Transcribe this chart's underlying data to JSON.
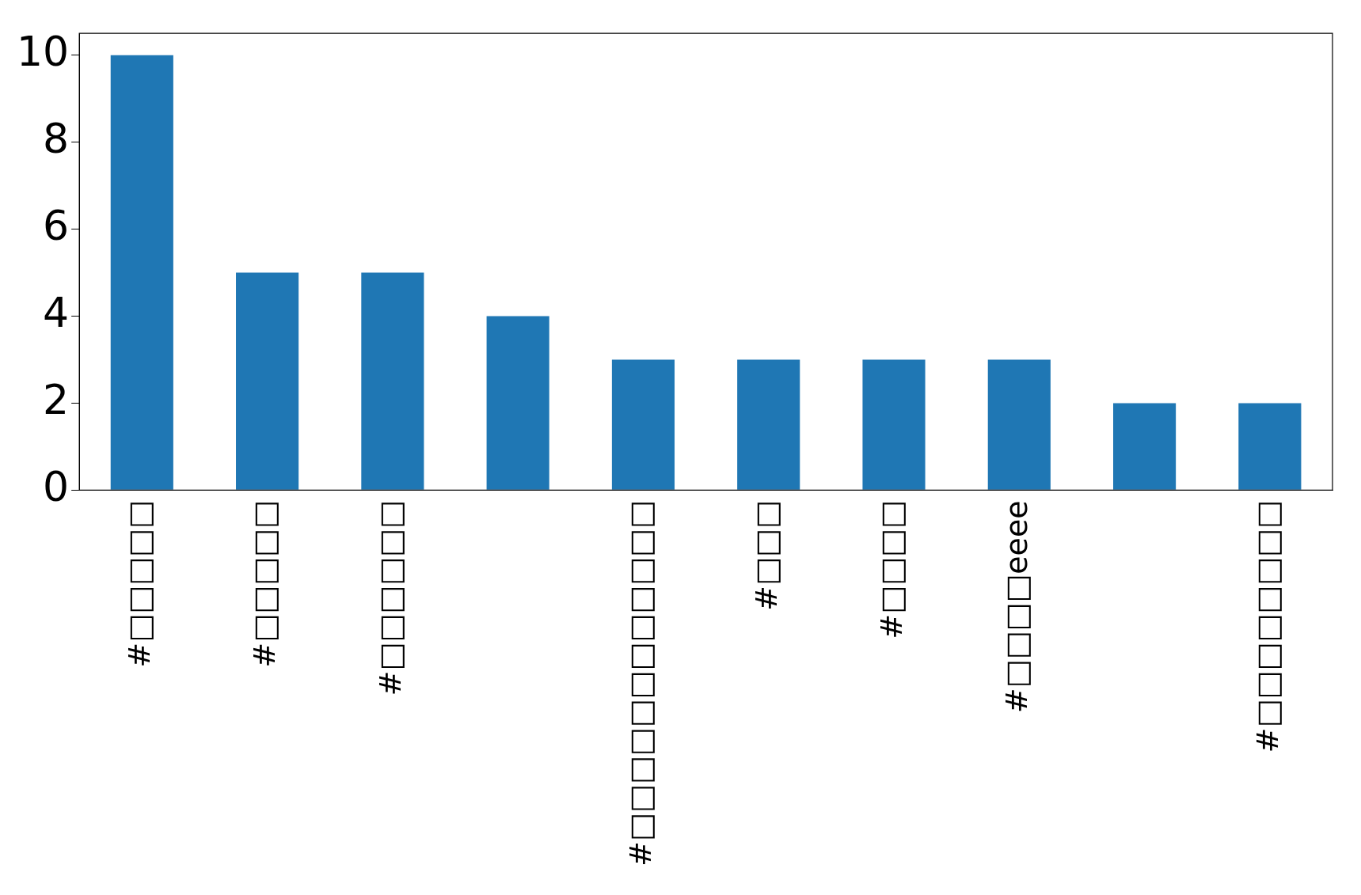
{
  "chart_data": {
    "type": "bar",
    "categories": [
      "#□□□□□",
      "#□□□□□",
      "#□□□□□□",
      null,
      "#□□□□□□□□□□□□",
      "#□□□",
      "#□□□□",
      "#□□□□eeee",
      null,
      "#□□□□□□□□"
    ],
    "values": [
      10,
      5,
      5,
      4,
      3,
      3,
      3,
      3,
      2,
      2
    ],
    "color": "#1f77b4",
    "ylim": [
      0,
      10.5
    ],
    "yticks": [
      0,
      2,
      4,
      6,
      8,
      10
    ],
    "grid": false,
    "legend": false
  }
}
